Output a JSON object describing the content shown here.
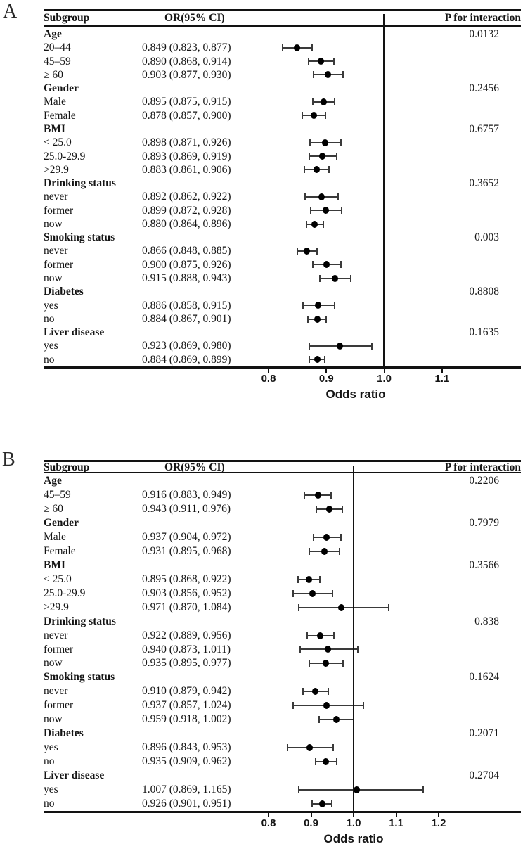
{
  "chart_data": [
    {
      "type": "forest",
      "panel_label": "A",
      "xlabel": "Odds ratio",
      "col_headers": {
        "subgroup": "Subgroup",
        "or_ci": "OR(95% CI)",
        "p": "P for interaction"
      },
      "axis_ticks": [
        0.8,
        0.9,
        1.0,
        1.1
      ],
      "tick_labels": [
        "0.8",
        "0.9",
        "1.0",
        "1.1"
      ],
      "ref_line": 1.0,
      "x_range": [
        0.74,
        1.24
      ],
      "rows": [
        {
          "label": "Age",
          "header": true,
          "p": "0.0132"
        },
        {
          "label": "20–44",
          "or": 0.849,
          "lo": 0.823,
          "hi": 0.877,
          "or_ci_text": "0.849 (0.823, 0.877)"
        },
        {
          "label": "45–59",
          "or": 0.89,
          "lo": 0.868,
          "hi": 0.914,
          "or_ci_text": "0.890 (0.868, 0.914)"
        },
        {
          "label": "≥ 60",
          "or": 0.903,
          "lo": 0.877,
          "hi": 0.93,
          "or_ci_text": "0.903 (0.877, 0.930)"
        },
        {
          "label": "Gender",
          "header": true,
          "p": "0.2456"
        },
        {
          "label": "Male",
          "or": 0.895,
          "lo": 0.875,
          "hi": 0.915,
          "or_ci_text": "0.895 (0.875, 0.915)"
        },
        {
          "label": "Female",
          "or": 0.878,
          "lo": 0.857,
          "hi": 0.9,
          "or_ci_text": "0.878 (0.857, 0.900)"
        },
        {
          "label": "BMI",
          "header": true,
          "p": "0.6757"
        },
        {
          "label": "< 25.0",
          "or": 0.898,
          "lo": 0.871,
          "hi": 0.926,
          "or_ci_text": "0.898 (0.871, 0.926)"
        },
        {
          "label": "25.0-29.9",
          "or": 0.893,
          "lo": 0.869,
          "hi": 0.919,
          "or_ci_text": "0.893 (0.869, 0.919)"
        },
        {
          "label": ">29.9",
          "or": 0.883,
          "lo": 0.861,
          "hi": 0.906,
          "or_ci_text": "0.883 (0.861, 0.906)"
        },
        {
          "label": "Drinking status",
          "header": true,
          "p": "0.3652"
        },
        {
          "label": "never",
          "or": 0.892,
          "lo": 0.862,
          "hi": 0.922,
          "or_ci_text": "0.892 (0.862, 0.922)"
        },
        {
          "label": "former",
          "or": 0.899,
          "lo": 0.872,
          "hi": 0.928,
          "or_ci_text": "0.899 (0.872, 0.928)"
        },
        {
          "label": "now",
          "or": 0.88,
          "lo": 0.864,
          "hi": 0.896,
          "or_ci_text": "0.880 (0.864, 0.896)"
        },
        {
          "label": "Smoking status",
          "header": true,
          "p": "0.003"
        },
        {
          "label": "never",
          "or": 0.866,
          "lo": 0.848,
          "hi": 0.885,
          "or_ci_text": "0.866 (0.848, 0.885)"
        },
        {
          "label": "former",
          "or": 0.9,
          "lo": 0.875,
          "hi": 0.926,
          "or_ci_text": "0.900 (0.875, 0.926)"
        },
        {
          "label": "now",
          "or": 0.915,
          "lo": 0.888,
          "hi": 0.943,
          "or_ci_text": "0.915 (0.888, 0.943)"
        },
        {
          "label": "Diabetes",
          "header": true,
          "p": "0.8808"
        },
        {
          "label": "yes",
          "or": 0.886,
          "lo": 0.858,
          "hi": 0.915,
          "or_ci_text": "0.886 (0.858, 0.915)"
        },
        {
          "label": "no",
          "or": 0.884,
          "lo": 0.867,
          "hi": 0.901,
          "or_ci_text": "0.884 (0.867, 0.901)"
        },
        {
          "label": "Liver disease",
          "header": true,
          "p": "0.1635"
        },
        {
          "label": "yes",
          "or": 0.923,
          "lo": 0.869,
          "hi": 0.98,
          "or_ci_text": "0.923 (0.869, 0.980)"
        },
        {
          "label": "no",
          "or": 0.884,
          "lo": 0.869,
          "hi": 0.899,
          "or_ci_text": "0.884 (0.869, 0.899)"
        }
      ]
    },
    {
      "type": "forest",
      "panel_label": "B",
      "xlabel": "Odds ratio",
      "col_headers": {
        "subgroup": "Subgroup",
        "or_ci": "OR(95% CI)",
        "p": "P for interaction"
      },
      "axis_ticks": [
        0.8,
        0.9,
        1.0,
        1.1,
        1.2
      ],
      "tick_labels": [
        "0.8",
        "0.9",
        "1.0",
        "1.1",
        "1.2"
      ],
      "ref_line": 1.0,
      "x_range": [
        0.74,
        1.33
      ],
      "rows": [
        {
          "label": "Age",
          "header": true,
          "p": "0.2206"
        },
        {
          "label": "45–59",
          "or": 0.916,
          "lo": 0.883,
          "hi": 0.949,
          "or_ci_text": "0.916 (0.883, 0.949)"
        },
        {
          "label": "≥ 60",
          "or": 0.943,
          "lo": 0.911,
          "hi": 0.976,
          "or_ci_text": "0.943 (0.911, 0.976)"
        },
        {
          "label": "Gender",
          "header": true,
          "p": "0.7979"
        },
        {
          "label": "Male",
          "or": 0.937,
          "lo": 0.904,
          "hi": 0.972,
          "or_ci_text": "0.937 (0.904, 0.972)"
        },
        {
          "label": "Female",
          "or": 0.931,
          "lo": 0.895,
          "hi": 0.968,
          "or_ci_text": "0.931 (0.895, 0.968)"
        },
        {
          "label": "BMI",
          "header": true,
          "p": "0.3566"
        },
        {
          "label": "< 25.0",
          "or": 0.895,
          "lo": 0.868,
          "hi": 0.922,
          "or_ci_text": "0.895 (0.868, 0.922)"
        },
        {
          "label": "25.0-29.9",
          "or": 0.903,
          "lo": 0.856,
          "hi": 0.952,
          "or_ci_text": "0.903 (0.856, 0.952)"
        },
        {
          "label": ">29.9",
          "or": 0.971,
          "lo": 0.87,
          "hi": 1.084,
          "or_ci_text": "0.971 (0.870, 1.084)"
        },
        {
          "label": "Drinking status",
          "header": true,
          "p": "0.838"
        },
        {
          "label": "never",
          "or": 0.922,
          "lo": 0.889,
          "hi": 0.956,
          "or_ci_text": "0.922 (0.889, 0.956)"
        },
        {
          "label": "former",
          "or": 0.94,
          "lo": 0.873,
          "hi": 1.011,
          "or_ci_text": "0.940 (0.873, 1.011)"
        },
        {
          "label": "now",
          "or": 0.935,
          "lo": 0.895,
          "hi": 0.977,
          "or_ci_text": "0.935 (0.895, 0.977)"
        },
        {
          "label": "Smoking status",
          "header": true,
          "p": "0.1624"
        },
        {
          "label": "never",
          "or": 0.91,
          "lo": 0.879,
          "hi": 0.942,
          "or_ci_text": "0.910 (0.879, 0.942)"
        },
        {
          "label": "former",
          "or": 0.937,
          "lo": 0.857,
          "hi": 1.024,
          "or_ci_text": "0.937 (0.857, 1.024)"
        },
        {
          "label": "now",
          "or": 0.959,
          "lo": 0.918,
          "hi": 1.002,
          "or_ci_text": "0.959 (0.918, 1.002)"
        },
        {
          "label": "Diabetes",
          "header": true,
          "p": "0.2071"
        },
        {
          "label": "yes",
          "or": 0.896,
          "lo": 0.843,
          "hi": 0.953,
          "or_ci_text": "0.896 (0.843, 0.953)"
        },
        {
          "label": "no",
          "or": 0.935,
          "lo": 0.909,
          "hi": 0.962,
          "or_ci_text": "0.935 (0.909, 0.962)"
        },
        {
          "label": "Liver disease",
          "header": true,
          "p": "0.2704"
        },
        {
          "label": "yes",
          "or": 1.007,
          "lo": 0.869,
          "hi": 1.165,
          "or_ci_text": "1.007 (0.869, 1.165)"
        },
        {
          "label": "no",
          "or": 0.926,
          "lo": 0.901,
          "hi": 0.951,
          "or_ci_text": "0.926 (0.901, 0.951)"
        }
      ]
    }
  ]
}
